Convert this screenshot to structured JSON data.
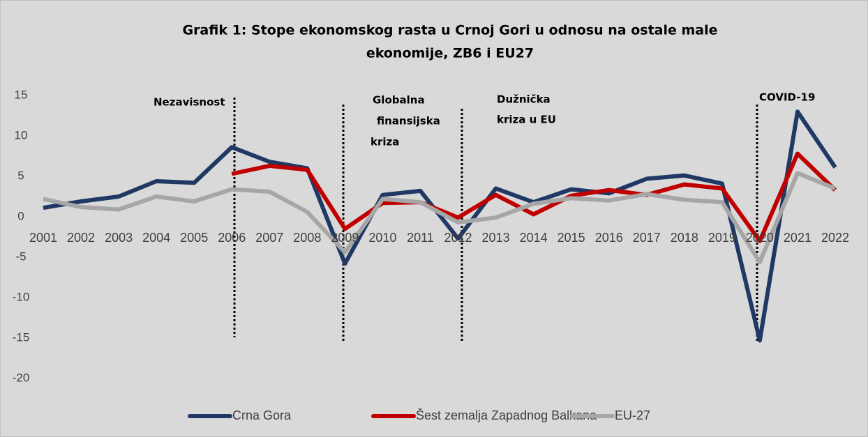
{
  "chart_data": {
    "type": "line",
    "title": [
      "Grafik 1: Stope ekonomskog rasta u Crnoj Gori u odnosu na ostale male",
      "ekonomije, ZB6 i EU27"
    ],
    "categories": [
      "2001",
      "2002",
      "2003",
      "2004",
      "2005",
      "2006",
      "2007",
      "2008",
      "2009",
      "2010",
      "2011",
      "2012",
      "2013",
      "2014",
      "2015",
      "2016",
      "2017",
      "2018",
      "2019",
      "2020",
      "2021",
      "2022"
    ],
    "series": [
      {
        "name": "Crna Gora",
        "color": "#203864",
        "values": [
          1.1,
          1.9,
          2.5,
          4.4,
          4.2,
          8.6,
          6.8,
          6.0,
          -5.8,
          2.7,
          3.2,
          -2.7,
          3.5,
          1.8,
          3.4,
          2.9,
          4.7,
          5.1,
          4.1,
          -15.3,
          13.0,
          6.1
        ]
      },
      {
        "name": "Šest zemalja Zapadnog Balkana",
        "color": "#c00000",
        "values": [
          null,
          null,
          null,
          null,
          null,
          5.3,
          6.3,
          5.8,
          -1.5,
          1.7,
          1.8,
          -0.1,
          2.7,
          0.3,
          2.6,
          3.3,
          2.7,
          4.0,
          3.5,
          -3.0,
          7.8,
          3.3
        ]
      },
      {
        "name": "EU-27",
        "color": "#a6a6a6",
        "values": [
          2.2,
          1.2,
          0.9,
          2.5,
          1.9,
          3.4,
          3.1,
          0.6,
          -4.4,
          2.2,
          1.8,
          -0.7,
          -0.1,
          1.6,
          2.3,
          2.0,
          2.8,
          2.1,
          1.8,
          -5.6,
          5.4,
          3.5
        ]
      }
    ],
    "ylim": [
      -20,
      15
    ],
    "yticks": [
      -20,
      -15,
      -10,
      -5,
      0,
      5,
      10,
      15
    ],
    "grid": false,
    "legend": "bottom",
    "annotations": [
      [
        "Nezavisnost"
      ],
      [
        "Globalna",
        "finansijska",
        "kriza"
      ],
      [
        "Dužnička",
        "kriza u EU"
      ],
      [
        "COVID-19"
      ]
    ]
  }
}
